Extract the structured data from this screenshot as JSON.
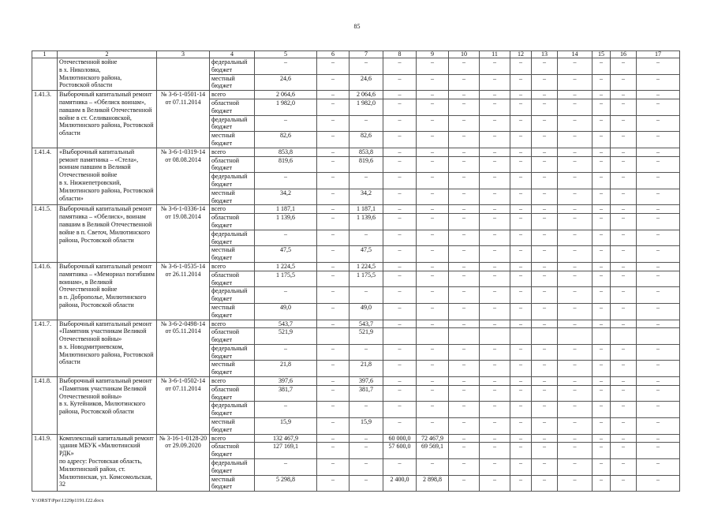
{
  "page_number": "85",
  "header": [
    "1",
    "2",
    "3",
    "4",
    "5",
    "6",
    "7",
    "8",
    "9",
    "10",
    "11",
    "12",
    "13",
    "14",
    "15",
    "16",
    "17"
  ],
  "groups": [
    {
      "id": "",
      "name": "Отечественной войне\nв х. Николовка,\nМилютинского района,\nРостовской области",
      "doc": "",
      "rows": [
        {
          "type": "федеральный\nбюджет",
          "values": [
            "–",
            "–",
            "–",
            "–",
            "–",
            "–",
            "–",
            "–",
            "–",
            "–",
            "–",
            "–",
            "–"
          ]
        },
        {
          "type": "местный\nбюджет",
          "values": [
            "24,6",
            "–",
            "24,6",
            "–",
            "–",
            "–",
            "–",
            "–",
            "–",
            "–",
            "–",
            "–",
            "–"
          ]
        }
      ]
    },
    {
      "id": "1.41.3.",
      "name": "Выборочный капитальный ремонт памятника – «Обелиск воинам», павшим в Великой Отечественной войне в ст. Селивановской, Милютинского района, Ростовской области",
      "doc": "№ 3-6-1-0501-14\nот 07.11.2014",
      "rows": [
        {
          "type": "всего",
          "values": [
            "2 064,6",
            "–",
            "2 064,6",
            "–",
            "–",
            "–",
            "–",
            "–",
            "–",
            "–",
            "–",
            "–",
            "–"
          ]
        },
        {
          "type": "областной\nбюджет",
          "values": [
            "1 982,0",
            "–",
            "1 982,0",
            "–",
            "–",
            "–",
            "–",
            "–",
            "–",
            "–",
            "–",
            "–",
            "–"
          ]
        },
        {
          "type": "федеральный\nбюджет",
          "values": [
            "–",
            "–",
            "–",
            "–",
            "–",
            "–",
            "–",
            "–",
            "–",
            "–",
            "–",
            "–",
            "–"
          ]
        },
        {
          "type": "местный\nбюджет",
          "values": [
            "82,6",
            "–",
            "82,6",
            "–",
            "–",
            "–",
            "–",
            "–",
            "–",
            "–",
            "–",
            "–",
            "–"
          ]
        }
      ]
    },
    {
      "id": "1.41.4.",
      "name": "«Выборочный капитальный ремонт памятника – «Стела», воинам павшим в Великой Отечественной войне\nв х. Нижнепетровский, Милютинского района, Ростовской области»",
      "doc": "№ 3-6-1-0319-14\nот 08.08.2014",
      "rows": [
        {
          "type": "всего",
          "values": [
            "853,8",
            "–",
            "853,8",
            "–",
            "–",
            "–",
            "–",
            "–",
            "–",
            "–",
            "–",
            "–",
            "–"
          ]
        },
        {
          "type": "областной\nбюджет",
          "values": [
            "819,6",
            "–",
            "819,6",
            "–",
            "–",
            "–",
            "–",
            "–",
            "–",
            "–",
            "–",
            "–",
            "–"
          ]
        },
        {
          "type": "федеральный\nбюджет",
          "values": [
            "–",
            "–",
            "–",
            "–",
            "–",
            "–",
            "–",
            "–",
            "–",
            "–",
            "–",
            "–",
            "–"
          ]
        },
        {
          "type": "местный\nбюджет",
          "values": [
            "34,2",
            "–",
            "34,2",
            "–",
            "–",
            "–",
            "–",
            "–",
            "–",
            "–",
            "–",
            "–",
            "–"
          ]
        }
      ]
    },
    {
      "id": "1.41.5.",
      "name": "Выборочный капитальный ремонт памятника – «Обелиск», воинам павшим в Великой Отечественной войне в п. Светоч, Милютинского района, Ростовской области",
      "doc": "№ 3-6-1-0336-14\nот 19.08.2014",
      "rows": [
        {
          "type": "всего",
          "values": [
            "1 187,1",
            "–",
            "1 187,1",
            "–",
            "–",
            "–",
            "–",
            "–",
            "–",
            "–",
            "–",
            "–",
            "–"
          ]
        },
        {
          "type": "областной\nбюджет",
          "values": [
            "1 139,6",
            "–",
            "1 139,6",
            "–",
            "–",
            "–",
            "–",
            "–",
            "–",
            "–",
            "–",
            "–",
            "–"
          ]
        },
        {
          "type": "федеральный\nбюджет",
          "values": [
            "–",
            "–",
            "–",
            "–",
            "–",
            "–",
            "–",
            "–",
            "–",
            "–",
            "–",
            "–",
            "–"
          ]
        },
        {
          "type": "местный\nбюджет",
          "values": [
            "47,5",
            "–",
            "47,5",
            "–",
            "–",
            "–",
            "–",
            "–",
            "–",
            "–",
            "–",
            "–",
            "–"
          ]
        }
      ]
    },
    {
      "id": "1.41.6.",
      "name": "Выборочный капитальный ремонт памятника – «Мемориал погибшим воинам», в Великой Отечественной войне\nв п. Доброполье, Милютинского района, Ростовской области",
      "doc": "№ 3-6-1-0535-14\nот 26.11.2014",
      "rows": [
        {
          "type": "всего",
          "values": [
            "1 224,5",
            "–",
            "1 224,5",
            "–",
            "–",
            "–",
            "–",
            "–",
            "–",
            "–",
            "–",
            "–",
            "–"
          ]
        },
        {
          "type": "областной\nбюджет",
          "values": [
            "1 175,5",
            "–",
            "1 175,5",
            "–",
            "–",
            "–",
            "–",
            "–",
            "–",
            "–",
            "–",
            "–",
            "–"
          ]
        },
        {
          "type": "федеральный\nбюджет",
          "values": [
            "–",
            "–",
            "–",
            "–",
            "–",
            "–",
            "–",
            "–",
            "–",
            "–",
            "–",
            "–",
            "–"
          ]
        },
        {
          "type": "местный\nбюджет",
          "values": [
            "49,0",
            "–",
            "49,0",
            "–",
            "–",
            "–",
            "–",
            "–",
            "–",
            "–",
            "–",
            "–",
            "–"
          ]
        }
      ]
    },
    {
      "id": "1.41.7.",
      "name": "Выборочный капитальный ремонт «Памятник участникам Великой Отечественной войны»\nв х. Новодмитриевском, Милютинского района, Ростовской области",
      "doc": "№ 3-6-2-0498-14\nот 05.11.2014",
      "rows": [
        {
          "type": "всего",
          "values": [
            "543,7",
            "–",
            "543,7",
            "–",
            "–",
            "–",
            "–",
            "–",
            "–",
            "–",
            "–",
            "–",
            "–"
          ]
        },
        {
          "type": "областной\nбюджет",
          "values": [
            "521,9",
            "",
            "521,9",
            "",
            "",
            "",
            "",
            "",
            "",
            "",
            "",
            "",
            ""
          ]
        },
        {
          "type": "федеральный\nбюджет",
          "values": [
            "–",
            "–",
            "–",
            "–",
            "–",
            "–",
            "–",
            "–",
            "–",
            "–",
            "–",
            "–",
            "–"
          ]
        },
        {
          "type": "местный\nбюджет",
          "values": [
            "21,8",
            "–",
            "21,8",
            "–",
            "–",
            "–",
            "–",
            "–",
            "–",
            "–",
            "–",
            "–",
            "–"
          ]
        }
      ]
    },
    {
      "id": "1.41.8.",
      "name": "Выборочный капитальный ремонт «Памятник участникам Великой Отечественной войны»\nв х. Кутейников, Милютинского района, Ростовской области",
      "doc": "№ 3-6-1-0502-14\nот 07.11.2014",
      "rows": [
        {
          "type": "всего",
          "values": [
            "397,6",
            "–",
            "397,6",
            "–",
            "–",
            "–",
            "–",
            "–",
            "–",
            "–",
            "–",
            "–",
            "–"
          ]
        },
        {
          "type": "областной\nбюджет",
          "values": [
            "381,7",
            "–",
            "381,7",
            "–",
            "–",
            "–",
            "–",
            "–",
            "–",
            "–",
            "–",
            "–",
            "–"
          ]
        },
        {
          "type": "федеральный\nбюджет",
          "values": [
            "–",
            "–",
            "–",
            "–",
            "–",
            "–",
            "–",
            "–",
            "–",
            "–",
            "–",
            "–",
            "–"
          ]
        },
        {
          "type": "местный\nбюджет",
          "values": [
            "15,9",
            "–",
            "15,9",
            "–",
            "–",
            "–",
            "–",
            "–",
            "–",
            "–",
            "–",
            "–",
            "–"
          ]
        }
      ]
    },
    {
      "id": "1.41.9.",
      "name": "Комплексный капитальный ремонт здания МБУК «Милютинский РДК»\nпо адресу: Ростовская область, Милютинский район, ст. Милютинская, ул. Комсомольская, 32",
      "doc": "№ 3-16-1-0128-20\nот 29.09.2020",
      "rows": [
        {
          "type": "всего",
          "values": [
            "132 467,9",
            "–",
            "–",
            "60 000,0",
            "72 467,9",
            "–",
            "–",
            "–",
            "–",
            "–",
            "–",
            "–",
            "–"
          ]
        },
        {
          "type": "областной\nбюджет",
          "values": [
            "127 169,1",
            "–",
            "–",
            "57 600,0",
            "69 569,1",
            "–",
            "–",
            "–",
            "–",
            "–",
            "–",
            "–",
            "–"
          ]
        },
        {
          "type": "федеральный\nбюджет",
          "values": [
            "–",
            "–",
            "–",
            "–",
            "–",
            "–",
            "–",
            "–",
            "–",
            "–",
            "–",
            "–",
            "–"
          ]
        },
        {
          "type": "местный\nбюджет",
          "values": [
            "5 298,8",
            "–",
            "–",
            "2 400,0",
            "2 898,8",
            "–",
            "–",
            "–",
            "–",
            "–",
            "–",
            "–",
            "–"
          ]
        }
      ]
    }
  ],
  "footer": "Y:\\ORST\\Ppo\\1229p1191.f22.docx"
}
